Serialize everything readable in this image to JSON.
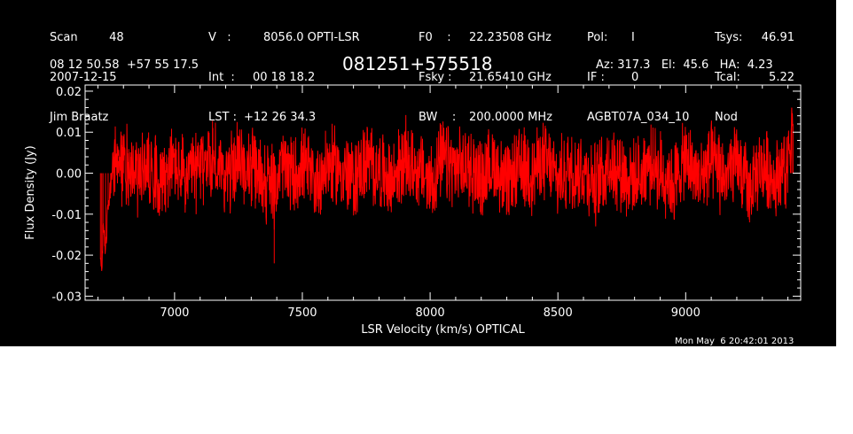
{
  "header": {
    "col1": [
      {
        "label": "Scan",
        "value": "48"
      },
      {
        "label": "2007-12-15",
        "value": ""
      },
      {
        "label": "Jim Braatz",
        "value": ""
      }
    ],
    "col2": [
      {
        "label": "V   :",
        "value": "8056.0 OPTI-LSR"
      },
      {
        "label": "Int  :",
        "value": "00 18 18.2"
      },
      {
        "label": "LST :",
        "value": "+12 26 34.3"
      }
    ],
    "col3": [
      {
        "label": "F0    :",
        "value": "22.23508 GHz"
      },
      {
        "label": "Fsky :",
        "value": "21.65410 GHz"
      },
      {
        "label": "BW    :",
        "value": "200.0000 MHz"
      }
    ],
    "col4": [
      {
        "label": "Pol:",
        "value": "I"
      },
      {
        "label": "IF :",
        "value": "0"
      },
      {
        "label": "AGBT07A_034_10",
        "value": ""
      }
    ],
    "col5": [
      {
        "label": "Tsys:",
        "value": "46.91"
      },
      {
        "label": "Tcal:",
        "value": "5.22"
      },
      {
        "label": "Nod",
        "value": ""
      }
    ],
    "coords": "08 12 50.58  +57 55 17.5",
    "source": "081251+575518",
    "az_el_ha": "Az: 317.3   El:  45.6   HA:  4.23",
    "timestamp": "Mon May  6 20:42:01 2013"
  },
  "colors": {
    "background": "#000000",
    "axes": "#ffffff",
    "trace": "#ff0000"
  },
  "chart_data": {
    "type": "line",
    "xlabel": "LSR Velocity (km/s) OPTICAL",
    "ylabel": "Flux Density (Jy)",
    "xlim": [
      6650,
      9450
    ],
    "ylim": [
      -0.031,
      0.0215
    ],
    "x_ticks": [
      7000,
      7500,
      8000,
      8500,
      9000
    ],
    "x_tick_labels": [
      "7000",
      "7500",
      "8000",
      "8500",
      "9000"
    ],
    "y_ticks": [
      0.02,
      0.01,
      0.0,
      -0.01,
      -0.02,
      -0.03
    ],
    "y_tick_labels": [
      "0.02",
      "0.01",
      "0.00",
      "-0.01",
      "-0.02",
      "-0.03"
    ],
    "grid": false,
    "series": [
      {
        "color": "#ff0000",
        "x": [
          6710,
          6715,
          6720,
          6730,
          6740,
          6750,
          6760,
          6780,
          6800,
          6830,
          6860,
          6900,
          6950,
          7000,
          7050,
          7100,
          7150,
          7200,
          7250,
          7300,
          7350,
          7385,
          7390,
          7395,
          7420,
          7460,
          7500,
          7550,
          7600,
          7650,
          7700,
          7750,
          7800,
          7850,
          7900,
          7950,
          8000,
          8050,
          8100,
          8150,
          8200,
          8250,
          8300,
          8350,
          8400,
          8450,
          8500,
          8550,
          8600,
          8650,
          8700,
          8750,
          8800,
          8850,
          8900,
          8950,
          9000,
          9050,
          9100,
          9150,
          9200,
          9250,
          9300,
          9350,
          9380,
          9390,
          9400,
          9410,
          9415,
          9420
        ],
        "y": [
          -0.021,
          -0.023,
          -0.015,
          -0.018,
          -0.008,
          -0.004,
          0.004,
          0.003,
          0.009,
          0.004,
          -0.002,
          0.007,
          -0.004,
          0.006,
          -0.005,
          0.004,
          0.011,
          -0.003,
          0.009,
          0.002,
          -0.004,
          -0.008,
          -0.022,
          -0.006,
          0.007,
          -0.003,
          0.005,
          -0.007,
          0.006,
          0.002,
          -0.005,
          0.008,
          0.001,
          -0.006,
          0.01,
          0.003,
          -0.007,
          0.009,
          0.002,
          0.005,
          -0.004,
          0.007,
          -0.009,
          0.004,
          0.001,
          0.009,
          -0.006,
          0.005,
          0.002,
          -0.008,
          0.008,
          0.002,
          -0.006,
          0.006,
          0.001,
          -0.007,
          0.009,
          -0.004,
          0.007,
          -0.003,
          0.006,
          -0.012,
          0.005,
          -0.004,
          0.006,
          -0.007,
          0.009,
          0.003,
          0.016,
          0.012
        ]
      }
    ]
  }
}
